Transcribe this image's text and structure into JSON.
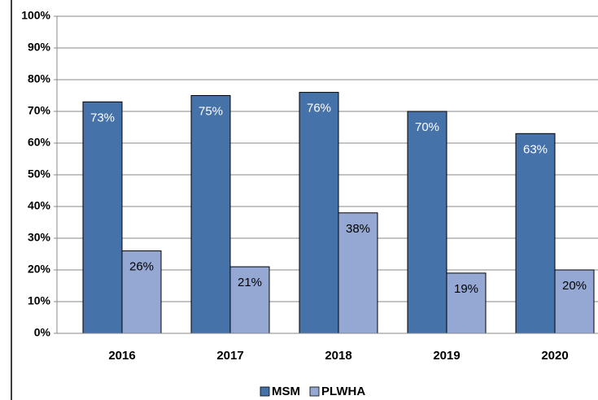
{
  "chart_data": {
    "type": "bar",
    "categories": [
      "2016",
      "2017",
      "2018",
      "2019",
      "2020"
    ],
    "series": [
      {
        "name": "MSM",
        "color": "#4672aa",
        "values": [
          73,
          75,
          76,
          70,
          63
        ],
        "value_labels": [
          "73%",
          "75%",
          "76%",
          "70%",
          "63%"
        ]
      },
      {
        "name": "PLWHA",
        "color": "#95a8d3",
        "values": [
          26,
          21,
          38,
          19,
          20
        ],
        "value_labels": [
          "26%",
          "21%",
          "38%",
          "19%",
          "20%"
        ]
      }
    ],
    "ylim": [
      0,
      100
    ],
    "yticks": [
      {
        "value": 0,
        "label": "0%"
      },
      {
        "value": 10,
        "label": "10%"
      },
      {
        "value": 20,
        "label": "20%"
      },
      {
        "value": 30,
        "label": "30%"
      },
      {
        "value": 40,
        "label": "40%"
      },
      {
        "value": 50,
        "label": "50%"
      },
      {
        "value": 60,
        "label": "60%"
      },
      {
        "value": 70,
        "label": "70%"
      },
      {
        "value": 80,
        "label": "80%"
      },
      {
        "value": 90,
        "label": "90%"
      },
      {
        "value": 100,
        "label": "100%"
      }
    ],
    "grid": true,
    "legend": "bottom"
  }
}
